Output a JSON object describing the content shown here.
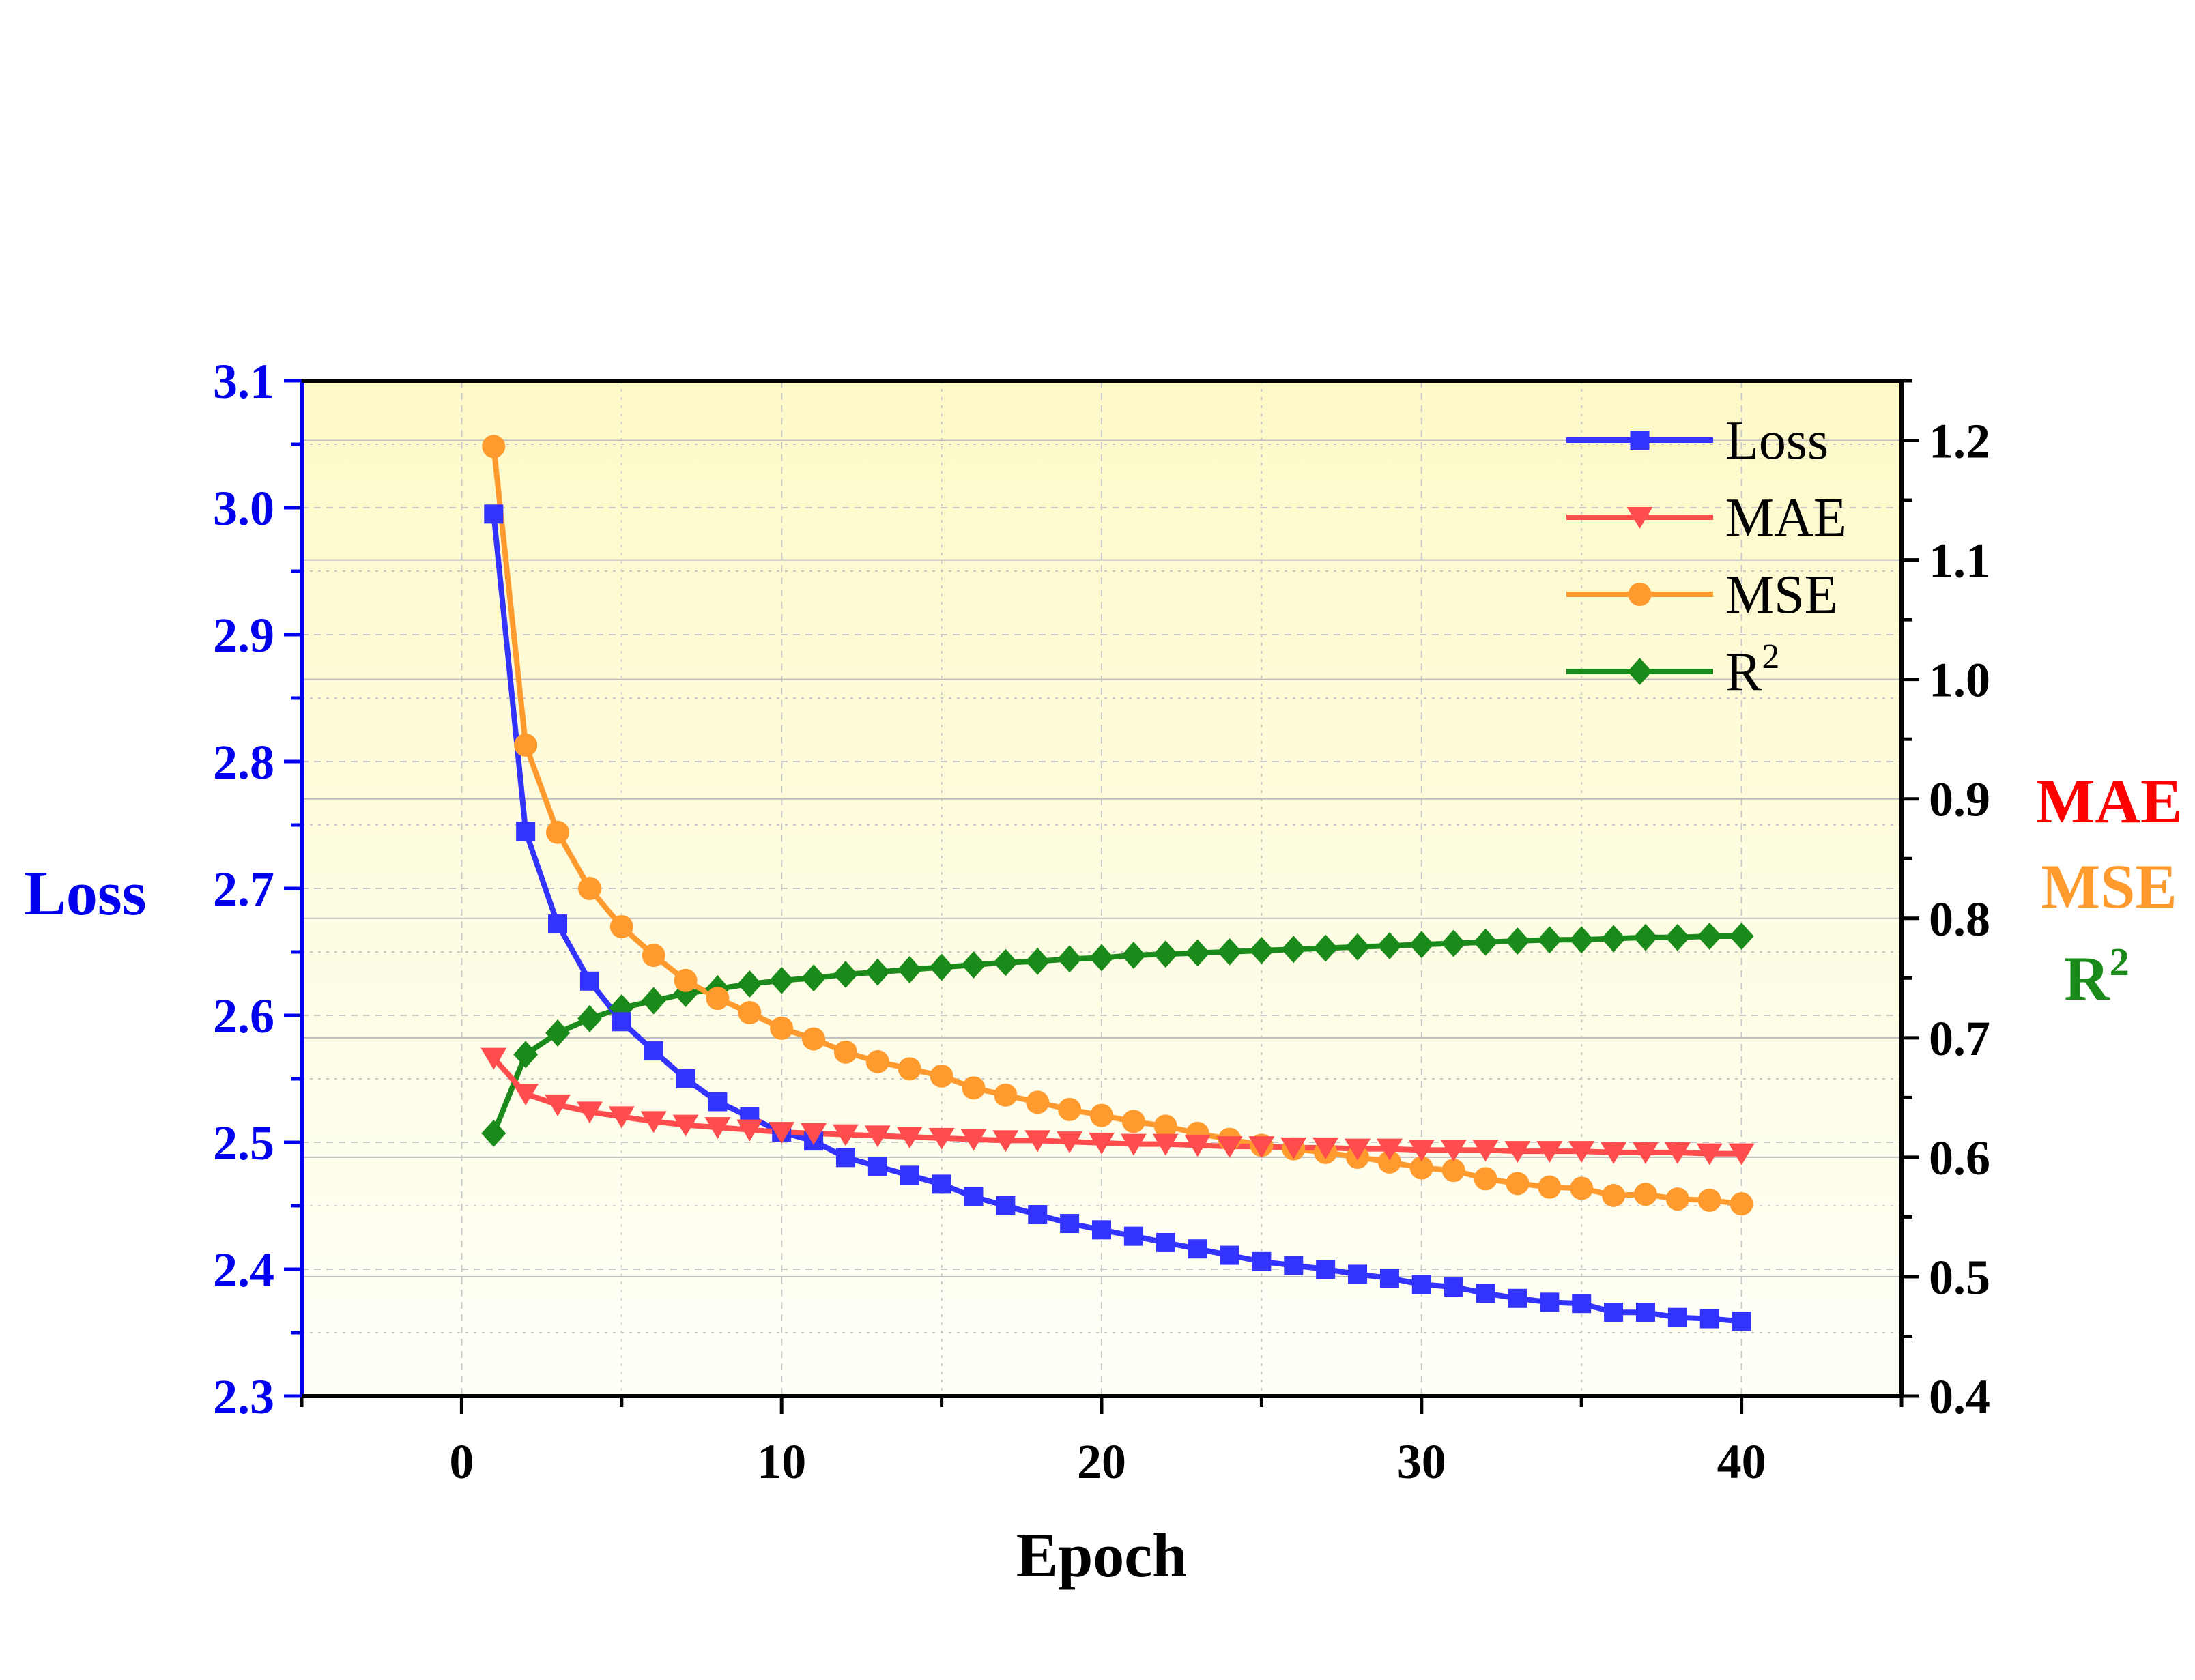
{
  "chart_data": {
    "type": "line",
    "xlabel": "Epoch",
    "ylabel_left": "Loss",
    "ylabel_right": [
      "MAE",
      "MSE",
      "R"
    ],
    "r2_superscript": "2",
    "xlim": [
      -5,
      45
    ],
    "ylim_left": [
      2.3,
      3.1
    ],
    "ylim_right": [
      0.4,
      1.25
    ],
    "x_ticks": [
      0,
      10,
      20,
      30,
      40
    ],
    "y_ticks_left": [
      "2.3",
      "2.4",
      "2.5",
      "2.6",
      "2.7",
      "2.8",
      "2.9",
      "3.0",
      "3.1"
    ],
    "y_ticks_right": [
      "0.4",
      "0.5",
      "0.6",
      "0.7",
      "0.8",
      "0.9",
      "1.0",
      "1.1",
      "1.2"
    ],
    "grid": true,
    "legend_position": "top-right",
    "colors": {
      "loss": "#3333ff",
      "mae": "#ff4d4d",
      "mse": "#ff9a2e",
      "r2": "#1a8a1a",
      "left_axis": "#0000ee",
      "mae_label": "#ff0000",
      "mse_label": "#ff9a2e",
      "r2_label": "#1a8a1a"
    },
    "x": [
      1,
      2,
      3,
      4,
      5,
      6,
      7,
      8,
      9,
      10,
      11,
      12,
      13,
      14,
      15,
      16,
      17,
      18,
      19,
      20,
      21,
      22,
      23,
      24,
      25,
      26,
      27,
      28,
      29,
      30,
      31,
      32,
      33,
      34,
      35,
      36,
      37,
      38,
      39,
      40
    ],
    "series": [
      {
        "name": "Loss",
        "axis": "left",
        "marker": "square",
        "values": [
          2.995,
          2.745,
          2.672,
          2.627,
          2.595,
          2.572,
          2.55,
          2.532,
          2.52,
          2.508,
          2.501,
          2.488,
          2.481,
          2.474,
          2.467,
          2.457,
          2.45,
          2.443,
          2.436,
          2.431,
          2.426,
          2.421,
          2.416,
          2.411,
          2.406,
          2.403,
          2.4,
          2.396,
          2.393,
          2.388,
          2.386,
          2.381,
          2.377,
          2.374,
          2.373,
          2.366,
          2.366,
          2.362,
          2.361,
          2.359
        ]
      },
      {
        "name": "MAE",
        "axis": "right",
        "marker": "triangle-down",
        "values": [
          0.683,
          0.653,
          0.644,
          0.638,
          0.634,
          0.63,
          0.627,
          0.625,
          0.623,
          0.621,
          0.62,
          0.619,
          0.618,
          0.617,
          0.616,
          0.615,
          0.614,
          0.614,
          0.613,
          0.612,
          0.611,
          0.611,
          0.61,
          0.609,
          0.609,
          0.608,
          0.608,
          0.607,
          0.607,
          0.606,
          0.606,
          0.606,
          0.605,
          0.605,
          0.605,
          0.604,
          0.604,
          0.604,
          0.603,
          0.603
        ]
      },
      {
        "name": "MSE",
        "axis": "right",
        "marker": "circle",
        "values": [
          1.195,
          0.945,
          0.872,
          0.825,
          0.793,
          0.769,
          0.748,
          0.733,
          0.721,
          0.708,
          0.699,
          0.688,
          0.68,
          0.674,
          0.668,
          0.658,
          0.652,
          0.646,
          0.64,
          0.635,
          0.63,
          0.626,
          0.62,
          0.615,
          0.61,
          0.607,
          0.604,
          0.6,
          0.596,
          0.591,
          0.589,
          0.582,
          0.578,
          0.575,
          0.574,
          0.568,
          0.569,
          0.565,
          0.564,
          0.561
        ]
      },
      {
        "name": "R",
        "axis": "right",
        "marker": "diamond",
        "values": [
          0.62,
          0.686,
          0.704,
          0.716,
          0.725,
          0.731,
          0.737,
          0.741,
          0.745,
          0.748,
          0.75,
          0.753,
          0.755,
          0.757,
          0.759,
          0.761,
          0.763,
          0.764,
          0.766,
          0.767,
          0.769,
          0.77,
          0.771,
          0.772,
          0.773,
          0.774,
          0.775,
          0.776,
          0.777,
          0.778,
          0.779,
          0.78,
          0.781,
          0.782,
          0.782,
          0.783,
          0.784,
          0.784,
          0.785,
          0.785
        ]
      }
    ]
  }
}
